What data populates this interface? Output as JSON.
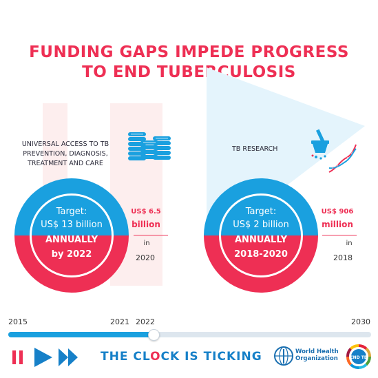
{
  "title": {
    "line1": "FUNDING GAPS IMPEDE PROGRESS",
    "line2": "TO END TUBERCULOSIS"
  },
  "left": {
    "label": [
      "UNIVERSAL ACCESS TO TB",
      "PREVENTION, DIAGNOSIS,",
      "TREATMENT AND CARE"
    ],
    "target": [
      "Target:",
      "US$ 13 billion",
      "ANNUALLY",
      "by 2022"
    ],
    "amount": [
      "US$ 6.5",
      "billion"
    ],
    "in": "in",
    "year": "2020",
    "icon": "coins-icon",
    "funded_fraction": 0.5
  },
  "right": {
    "label": "TB RESEARCH",
    "target": [
      "Target:",
      "US$ 2 billion",
      "ANNUALLY",
      "2018-2020"
    ],
    "amount": [
      "US$ 906",
      "million"
    ],
    "in": "in",
    "year": "2018",
    "icon": "mortar-pestle-dna-icon",
    "funded_fraction": 0.45
  },
  "timeline": {
    "start": "2015",
    "mark1": "2021",
    "mark2": "2022",
    "end": "2030",
    "progress_year": 2021
  },
  "footer": {
    "slogan_parts": [
      "THE CL",
      "O",
      "CK IS TICKING"
    ],
    "who_label": [
      "World Health",
      "Organization"
    ],
    "endtb_label": "END TB"
  },
  "colors": {
    "red": "#ee2f54",
    "blue": "#1aa0df",
    "dark_blue": "#1680c8",
    "pink": "#fdeeee"
  }
}
